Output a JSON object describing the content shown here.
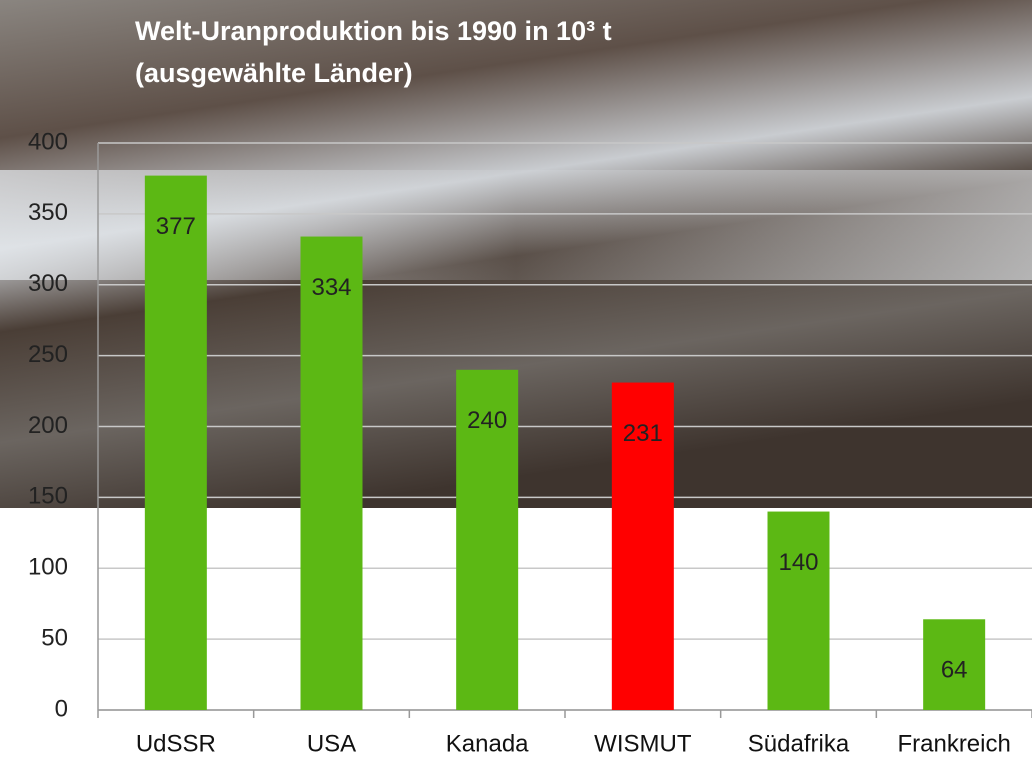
{
  "chart_data": {
    "type": "bar",
    "title": [
      "Welt-Uranproduktion bis 1990 in 10³ t",
      "(ausgewählte Länder)"
    ],
    "categories": [
      "UdSSR",
      "USA",
      "Kanada",
      "WISMUT",
      "Südafrika",
      "Frankreich"
    ],
    "values": [
      377,
      334,
      240,
      231,
      140,
      64
    ],
    "colors": [
      "#5cb814",
      "#5cb814",
      "#5cb814",
      "#ff0000",
      "#5cb814",
      "#5cb814"
    ],
    "ylim": [
      0,
      400
    ],
    "yticks": [
      0,
      50,
      100,
      150,
      200,
      250,
      300,
      350,
      400
    ],
    "grid": true
  }
}
